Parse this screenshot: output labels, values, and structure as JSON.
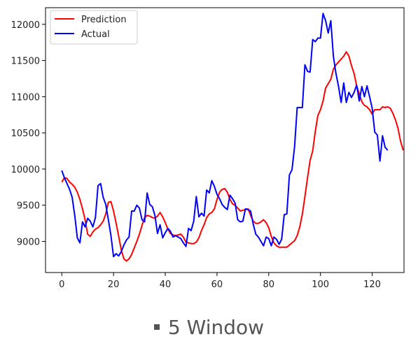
{
  "caption": "5 Window",
  "chart_data": {
    "type": "line",
    "xlim": [
      -6.3,
      132.3
    ],
    "ylim": [
      8570,
      12230
    ],
    "xticks": [
      0,
      20,
      40,
      60,
      80,
      100,
      120
    ],
    "yticks": [
      9000,
      9500,
      10000,
      10500,
      11000,
      11500,
      12000
    ],
    "legend_position": "top-left",
    "grid": false,
    "series": [
      {
        "name": "Prediction",
        "color": "#ff0000",
        "y": [
          9820,
          9880,
          9870,
          9820,
          9790,
          9750,
          9680,
          9580,
          9450,
          9300,
          9100,
          9070,
          9130,
          9170,
          9190,
          9230,
          9280,
          9380,
          9540,
          9550,
          9420,
          9250,
          9070,
          8880,
          8760,
          8730,
          8760,
          8820,
          8910,
          9000,
          9100,
          9220,
          9330,
          9360,
          9350,
          9330,
          9320,
          9350,
          9400,
          9340,
          9260,
          9170,
          9110,
          9090,
          9080,
          9090,
          9100,
          9060,
          8990,
          8980,
          8970,
          8970,
          8990,
          9050,
          9150,
          9230,
          9330,
          9380,
          9400,
          9450,
          9580,
          9680,
          9720,
          9730,
          9680,
          9580,
          9520,
          9500,
          9460,
          9420,
          9430,
          9440,
          9450,
          9360,
          9280,
          9250,
          9250,
          9270,
          9300,
          9260,
          9190,
          9070,
          8980,
          8940,
          8920,
          8920,
          8920,
          8920,
          8950,
          8980,
          9010,
          9080,
          9200,
          9380,
          9620,
          9880,
          10120,
          10250,
          10520,
          10740,
          10820,
          10940,
          11120,
          11180,
          11240,
          11380,
          11440,
          11480,
          11520,
          11560,
          11620,
          11560,
          11430,
          11320,
          11150,
          11040,
          10930,
          10880,
          10860,
          10820,
          10760,
          10820,
          10820,
          10820,
          10860,
          10850,
          10860,
          10840,
          10770,
          10680,
          10560,
          10380,
          10260
        ]
      },
      {
        "name": "Actual",
        "color": "#0000ff",
        "y": [
          9980,
          9880,
          9800,
          9720,
          9610,
          9360,
          9050,
          8980,
          9270,
          9200,
          9320,
          9280,
          9200,
          9330,
          9770,
          9800,
          9610,
          9510,
          9300,
          9080,
          8790,
          8830,
          8800,
          8860,
          8950,
          9020,
          9060,
          9420,
          9420,
          9500,
          9460,
          9300,
          9270,
          9670,
          9510,
          9480,
          9360,
          9110,
          9230,
          9050,
          9120,
          9180,
          9140,
          9060,
          9080,
          9060,
          9040,
          8980,
          8930,
          9180,
          9150,
          9280,
          9620,
          9340,
          9390,
          9350,
          9710,
          9670,
          9840,
          9760,
          9650,
          9590,
          9510,
          9470,
          9440,
          9640,
          9590,
          9530,
          9300,
          9270,
          9280,
          9450,
          9440,
          9420,
          9240,
          9100,
          9060,
          9000,
          8940,
          9060,
          9040,
          8940,
          9060,
          9030,
          8960,
          9030,
          9370,
          9380,
          9920,
          9990,
          10310,
          10850,
          10850,
          10850,
          11440,
          11350,
          11340,
          11790,
          11760,
          11810,
          11810,
          12150,
          12050,
          11880,
          12050,
          11560,
          11320,
          11140,
          10920,
          11190,
          10920,
          11060,
          10990,
          11060,
          11160,
          10940,
          11140,
          11000,
          11150,
          11000,
          10840,
          10510,
          10470,
          10110,
          10460,
          10300,
          10260
        ]
      }
    ]
  }
}
